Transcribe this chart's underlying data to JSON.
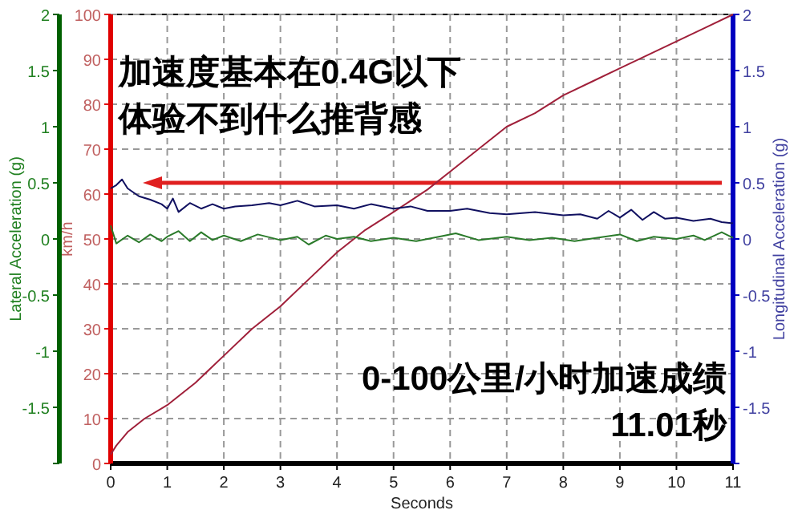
{
  "chart_data": {
    "type": "line",
    "xlabel": "Seconds",
    "ylabel": "km/h",
    "y2label": "Longitudinal Acceleration (g)",
    "y3label": "Lateral Acceleration (g)",
    "xlim": [
      0,
      11
    ],
    "xticks": [
      0,
      1,
      2,
      3,
      4,
      5,
      6,
      7,
      8,
      9,
      10,
      11
    ],
    "ylim": [
      0,
      100
    ],
    "yticks": [
      0,
      10,
      20,
      30,
      40,
      50,
      60,
      70,
      80,
      90,
      100
    ],
    "y2lim": [
      -2,
      2
    ],
    "y2ticks": [
      {
        "value": -2,
        "label": null
      },
      -1.5,
      -1,
      -0.5,
      0,
      0.5,
      1,
      1.5,
      2
    ],
    "y3lim": [
      -2,
      2
    ],
    "y3ticks": [
      {
        "value": -2,
        "label": null
      },
      -1.5,
      -1,
      -0.5,
      0,
      0.5,
      1,
      1.5,
      2
    ],
    "grid": true,
    "series": [
      {
        "color": "#a0203a",
        "axis": "y",
        "x": [
          0,
          0.1,
          0.3,
          0.6,
          1,
          1.5,
          2,
          2.5,
          3,
          3.5,
          4,
          4.5,
          5,
          5.6,
          6,
          6.5,
          7,
          7.5,
          8,
          8.5,
          9,
          9.5,
          10,
          10.5,
          11
        ],
        "values": [
          2,
          4,
          7,
          10,
          13,
          18,
          24,
          30,
          35,
          41,
          47,
          52,
          56,
          61,
          65,
          70,
          75,
          78,
          82,
          85,
          88,
          91,
          94,
          97,
          100
        ]
      },
      {
        "color": "#101060",
        "axis": "y2",
        "x": [
          0,
          0.1,
          0.2,
          0.3,
          0.5,
          0.7,
          0.9,
          1.0,
          1.1,
          1.2,
          1.4,
          1.6,
          1.8,
          2.0,
          2.2,
          2.5,
          2.8,
          3.0,
          3.3,
          3.6,
          4.0,
          4.3,
          4.6,
          5.0,
          5.3,
          5.6,
          6.0,
          6.3,
          6.7,
          7.0,
          7.5,
          8.0,
          8.3,
          8.6,
          8.8,
          9.0,
          9.2,
          9.4,
          9.6,
          9.8,
          10.0,
          10.3,
          10.6,
          10.8,
          11.0
        ],
        "values": [
          0.45,
          0.48,
          0.53,
          0.45,
          0.38,
          0.35,
          0.31,
          0.27,
          0.36,
          0.24,
          0.32,
          0.27,
          0.31,
          0.27,
          0.29,
          0.3,
          0.32,
          0.3,
          0.34,
          0.29,
          0.3,
          0.27,
          0.31,
          0.27,
          0.29,
          0.25,
          0.25,
          0.27,
          0.23,
          0.22,
          0.24,
          0.21,
          0.22,
          0.18,
          0.25,
          0.19,
          0.26,
          0.17,
          0.24,
          0.18,
          0.19,
          0.16,
          0.18,
          0.15,
          0.14
        ]
      },
      {
        "color": "#2a7a2a",
        "axis": "y3",
        "x": [
          0,
          0.1,
          0.3,
          0.5,
          0.7,
          0.9,
          1.0,
          1.2,
          1.4,
          1.6,
          1.8,
          2.0,
          2.3,
          2.6,
          3.0,
          3.3,
          3.5,
          3.8,
          4.0,
          4.3,
          4.6,
          5.0,
          5.4,
          5.8,
          6.1,
          6.5,
          7.0,
          7.4,
          7.8,
          8.2,
          8.6,
          9.0,
          9.3,
          9.6,
          10.0,
          10.3,
          10.5,
          10.8,
          11.0
        ],
        "values": [
          0.12,
          -0.04,
          0.03,
          -0.03,
          0.04,
          -0.02,
          0.02,
          0.07,
          -0.02,
          0.06,
          -0.01,
          0.03,
          -0.02,
          0.04,
          -0.01,
          0.02,
          -0.05,
          0.03,
          0,
          0.02,
          -0.02,
          0.01,
          -0.02,
          0.02,
          0.05,
          -0.01,
          0.02,
          -0.01,
          0.01,
          -0.02,
          0.01,
          0.04,
          -0.02,
          0.02,
          0,
          0.03,
          -0.01,
          0.06,
          0.01
        ]
      }
    ],
    "ref_lines": [
      {
        "axis": "y2",
        "value": 0.5,
        "color": "#e02020"
      }
    ],
    "annotations": [
      "加速度基本在0.4G以下",
      "体验不到什么推背感",
      "0-100公里/小时加速成绩",
      "11.01秒"
    ]
  }
}
